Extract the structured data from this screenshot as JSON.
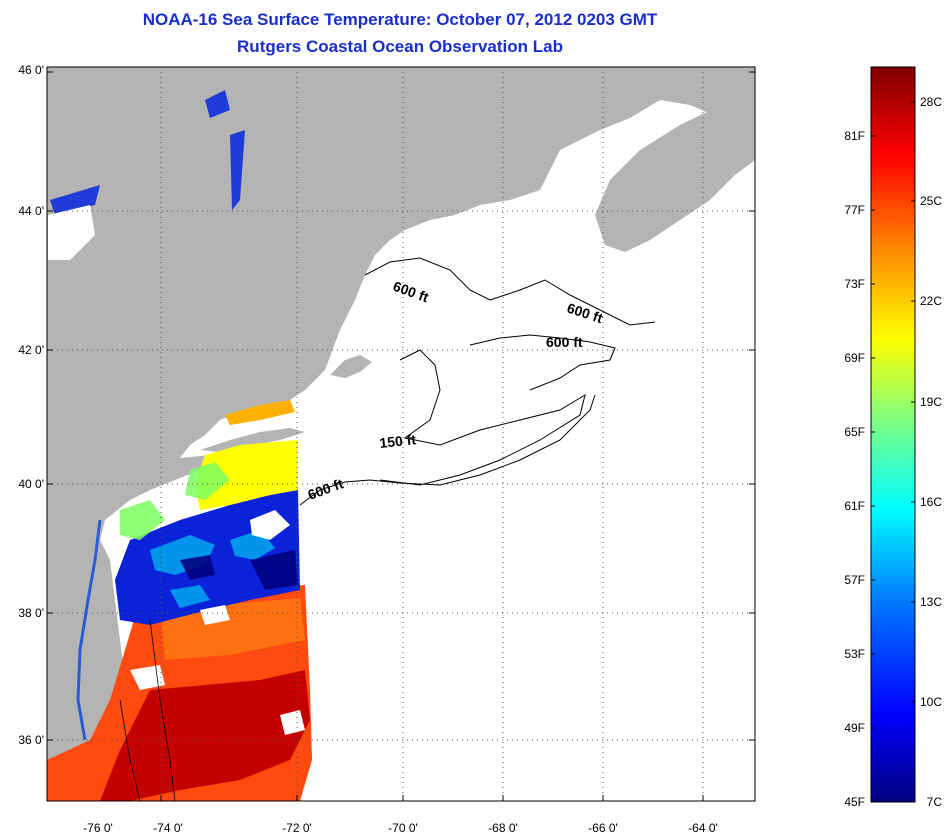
{
  "title": {
    "line1": "NOAA-16 Sea Surface Temperature:  October 07, 2012 0203 GMT",
    "line2": "Rutgers Coastal Ocean Observation Lab"
  },
  "map": {
    "lat_labels": [
      "46 0'",
      "44 0'",
      "42 0'",
      "40 0'",
      "38 0'",
      "36 0'"
    ],
    "lon_labels": [
      "-76 0'",
      "-74 0'",
      "-72 0'",
      "-70 0'",
      "-68 0'",
      "-66 0'",
      "-64 0'"
    ],
    "contour_labels": [
      "600 ft",
      "600 ft",
      "600 ft",
      "150 ft",
      "600 ft"
    ],
    "colors": {
      "land": "#b4b4b4",
      "ocean_nodata": "#ffffff",
      "gridline": "#555555"
    }
  },
  "colorbar": {
    "fahrenheit": [
      "81F",
      "77F",
      "73F",
      "69F",
      "65F",
      "61F",
      "57F",
      "53F",
      "49F",
      "45F"
    ],
    "celsius": [
      "28C",
      "25C",
      "22C",
      "19C",
      "16C",
      "13C",
      "10C",
      "7C"
    ],
    "colors": [
      "#00007f",
      "#0000ff",
      "#0080ff",
      "#00ffff",
      "#80ff80",
      "#ffff00",
      "#ff8000",
      "#ff0000",
      "#7f0000"
    ]
  }
}
